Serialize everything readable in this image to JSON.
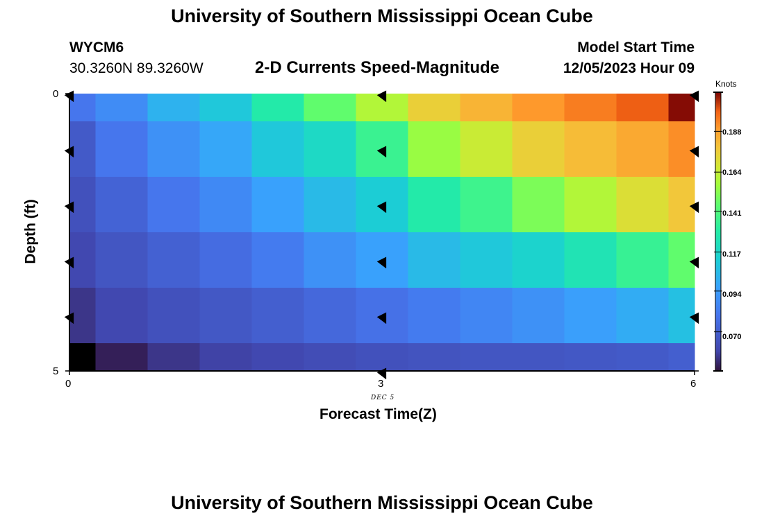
{
  "header": {
    "title": "University of Southern Mississippi Ocean Cube",
    "station_id": "WYCM6",
    "coordinates": "30.3260N  89.3260W",
    "plot_subtitle": "2-D Currents Speed-Magnitude",
    "model_start_label": "Model Start Time",
    "model_start_value": "12/05/2023 Hour 09"
  },
  "footer": {
    "title": "University of Southern Mississippi Ocean Cube"
  },
  "colors": {
    "vector": "#000000",
    "missing": "#000000"
  },
  "chart_data": {
    "type": "heatmap",
    "title": "2-D Currents Speed-Magnitude",
    "xlabel": "Forecast Time(Z)",
    "ylabel": "Depth (ft)",
    "x_tick_labels": [
      "0",
      "3",
      "6"
    ],
    "x_ticks": [
      0,
      3,
      6
    ],
    "y_tick_labels": [
      "0",
      "5"
    ],
    "y_ticks": [
      0,
      5
    ],
    "xlim": [
      0,
      6
    ],
    "ylim": [
      0,
      5
    ],
    "date_label": "DEC 5",
    "date_label_x": 3,
    "colorbar": {
      "label": "Knots",
      "min": 0.047,
      "max": 0.211,
      "tick_labels": [
        "0.070",
        "0.094",
        "0.117",
        "0.141",
        "0.164",
        "0.188"
      ],
      "tick_values": [
        0.07,
        0.094,
        0.117,
        0.141,
        0.164,
        0.188
      ]
    },
    "times": [
      0,
      0.5,
      1,
      1.5,
      2,
      2.5,
      3,
      3.5,
      4,
      4.5,
      5,
      5.5,
      6
    ],
    "depths": [
      0,
      1,
      2,
      3,
      4,
      5
    ],
    "speed_knots": [
      [
        0.08,
        0.088,
        0.102,
        0.11,
        0.128,
        0.145,
        0.16,
        0.175,
        0.183,
        0.19,
        0.195,
        0.2,
        0.21
      ],
      [
        0.068,
        0.08,
        0.09,
        0.098,
        0.11,
        0.118,
        0.135,
        0.155,
        0.165,
        0.175,
        0.181,
        0.186,
        0.192
      ],
      [
        0.064,
        0.072,
        0.08,
        0.087,
        0.096,
        0.105,
        0.112,
        0.128,
        0.136,
        0.15,
        0.16,
        0.17,
        0.178
      ],
      [
        0.06,
        0.066,
        0.071,
        0.076,
        0.082,
        0.09,
        0.096,
        0.105,
        0.11,
        0.115,
        0.124,
        0.134,
        0.145
      ],
      [
        0.055,
        0.06,
        0.064,
        0.067,
        0.07,
        0.074,
        0.078,
        0.082,
        0.086,
        0.09,
        0.095,
        0.1,
        0.107
      ],
      [
        null,
        0.05,
        0.055,
        0.058,
        0.06,
        0.062,
        0.064,
        0.065,
        0.066,
        0.066,
        0.067,
        0.068,
        0.07
      ]
    ],
    "vectors": [
      {
        "time": 0,
        "depth": 0
      },
      {
        "time": 0,
        "depth": 1
      },
      {
        "time": 0,
        "depth": 2
      },
      {
        "time": 0,
        "depth": 3
      },
      {
        "time": 0,
        "depth": 4
      },
      {
        "time": 3,
        "depth": 0
      },
      {
        "time": 3,
        "depth": 1
      },
      {
        "time": 3,
        "depth": 2
      },
      {
        "time": 3,
        "depth": 3
      },
      {
        "time": 3,
        "depth": 4
      },
      {
        "time": 3,
        "depth": 5
      },
      {
        "time": 6,
        "depth": 0
      },
      {
        "time": 6,
        "depth": 1
      },
      {
        "time": 6,
        "depth": 2
      },
      {
        "time": 6,
        "depth": 3
      },
      {
        "time": 6,
        "depth": 4
      }
    ]
  }
}
